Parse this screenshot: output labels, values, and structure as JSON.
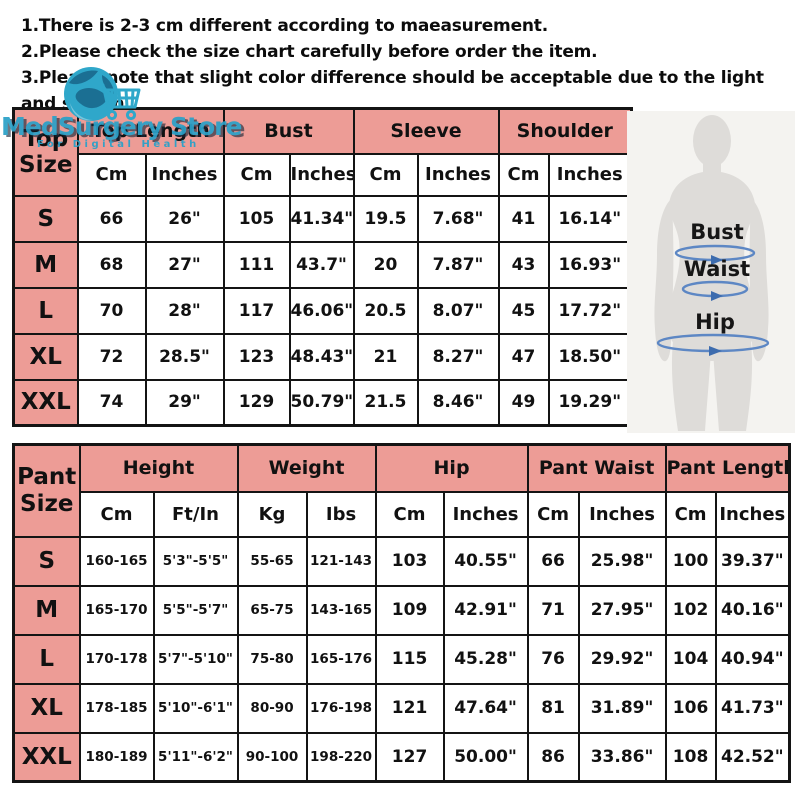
{
  "notes": {
    "lines": [
      "1.There is 2-3 cm different according to maeasurement.",
      "2.Please check the size chart carefully before order the item.",
      "3.Please note that slight color difference should be acceptable due to the light and screen."
    ]
  },
  "logo": {
    "name": "MedSurgery Store",
    "tagline": "For Digital Health",
    "teal": "#2ba1c8"
  },
  "colors": {
    "header_pink": "#ed9c96",
    "table_border": "#141414",
    "figure_background": "#f4f3f0",
    "silhouette_gray": "#dedcd9",
    "measure_arrow_blue": "#5d87c4"
  },
  "figure": {
    "labels": {
      "bust": "Bust",
      "waist": "Waist",
      "hip": "Hip"
    }
  },
  "top_table": {
    "corner_label": "Top Size",
    "group_headers": [
      "Top Length",
      "Bust",
      "Sleeve",
      "Shoulder"
    ],
    "unit_headers": [
      "Cm",
      "Inches",
      "Cm",
      "Inches",
      "Cm",
      "Inches",
      "Cm",
      "Inches"
    ],
    "rows": [
      {
        "size": "S",
        "cells": [
          "66",
          "26\"",
          "105",
          "41.34\"",
          "19.5",
          "7.68\"",
          "41",
          "16.14\""
        ]
      },
      {
        "size": "M",
        "cells": [
          "68",
          "27\"",
          "111",
          "43.7\"",
          "20",
          "7.87\"",
          "43",
          "16.93\""
        ]
      },
      {
        "size": "L",
        "cells": [
          "70",
          "28\"",
          "117",
          "46.06\"",
          "20.5",
          "8.07\"",
          "45",
          "17.72\""
        ]
      },
      {
        "size": "XL",
        "cells": [
          "72",
          "28.5\"",
          "123",
          "48.43\"",
          "21",
          "8.27\"",
          "47",
          "18.50\""
        ]
      },
      {
        "size": "XXL",
        "cells": [
          "74",
          "29\"",
          "129",
          "50.79\"",
          "21.5",
          "8.46\"",
          "49",
          "19.29\""
        ]
      }
    ]
  },
  "pant_table": {
    "corner_label": "Pant Size",
    "group_headers": [
      "Height",
      "Weight",
      "Hip",
      "Pant Waist",
      "Pant Length"
    ],
    "unit_headers": [
      "Cm",
      "Ft/In",
      "Kg",
      "Ibs",
      "Cm",
      "Inches",
      "Cm",
      "Inches",
      "Cm",
      "Inches"
    ],
    "rows": [
      {
        "size": "S",
        "cells": [
          "160-165",
          "5'3\"-5'5\"",
          "55-65",
          "121-143",
          "103",
          "40.55\"",
          "66",
          "25.98\"",
          "100",
          "39.37\""
        ]
      },
      {
        "size": "M",
        "cells": [
          "165-170",
          "5'5\"-5'7\"",
          "65-75",
          "143-165",
          "109",
          "42.91\"",
          "71",
          "27.95\"",
          "102",
          "40.16\""
        ]
      },
      {
        "size": "L",
        "cells": [
          "170-178",
          "5'7\"-5'10\"",
          "75-80",
          "165-176",
          "115",
          "45.28\"",
          "76",
          "29.92\"",
          "104",
          "40.94\""
        ]
      },
      {
        "size": "XL",
        "cells": [
          "178-185",
          "5'10\"-6'1\"",
          "80-90",
          "176-198",
          "121",
          "47.64\"",
          "81",
          "31.89\"",
          "106",
          "41.73\""
        ]
      },
      {
        "size": "XXL",
        "cells": [
          "180-189",
          "5'11\"-6'2\"",
          "90-100",
          "198-220",
          "127",
          "50.00\"",
          "86",
          "33.86\"",
          "108",
          "42.52\""
        ]
      }
    ]
  }
}
